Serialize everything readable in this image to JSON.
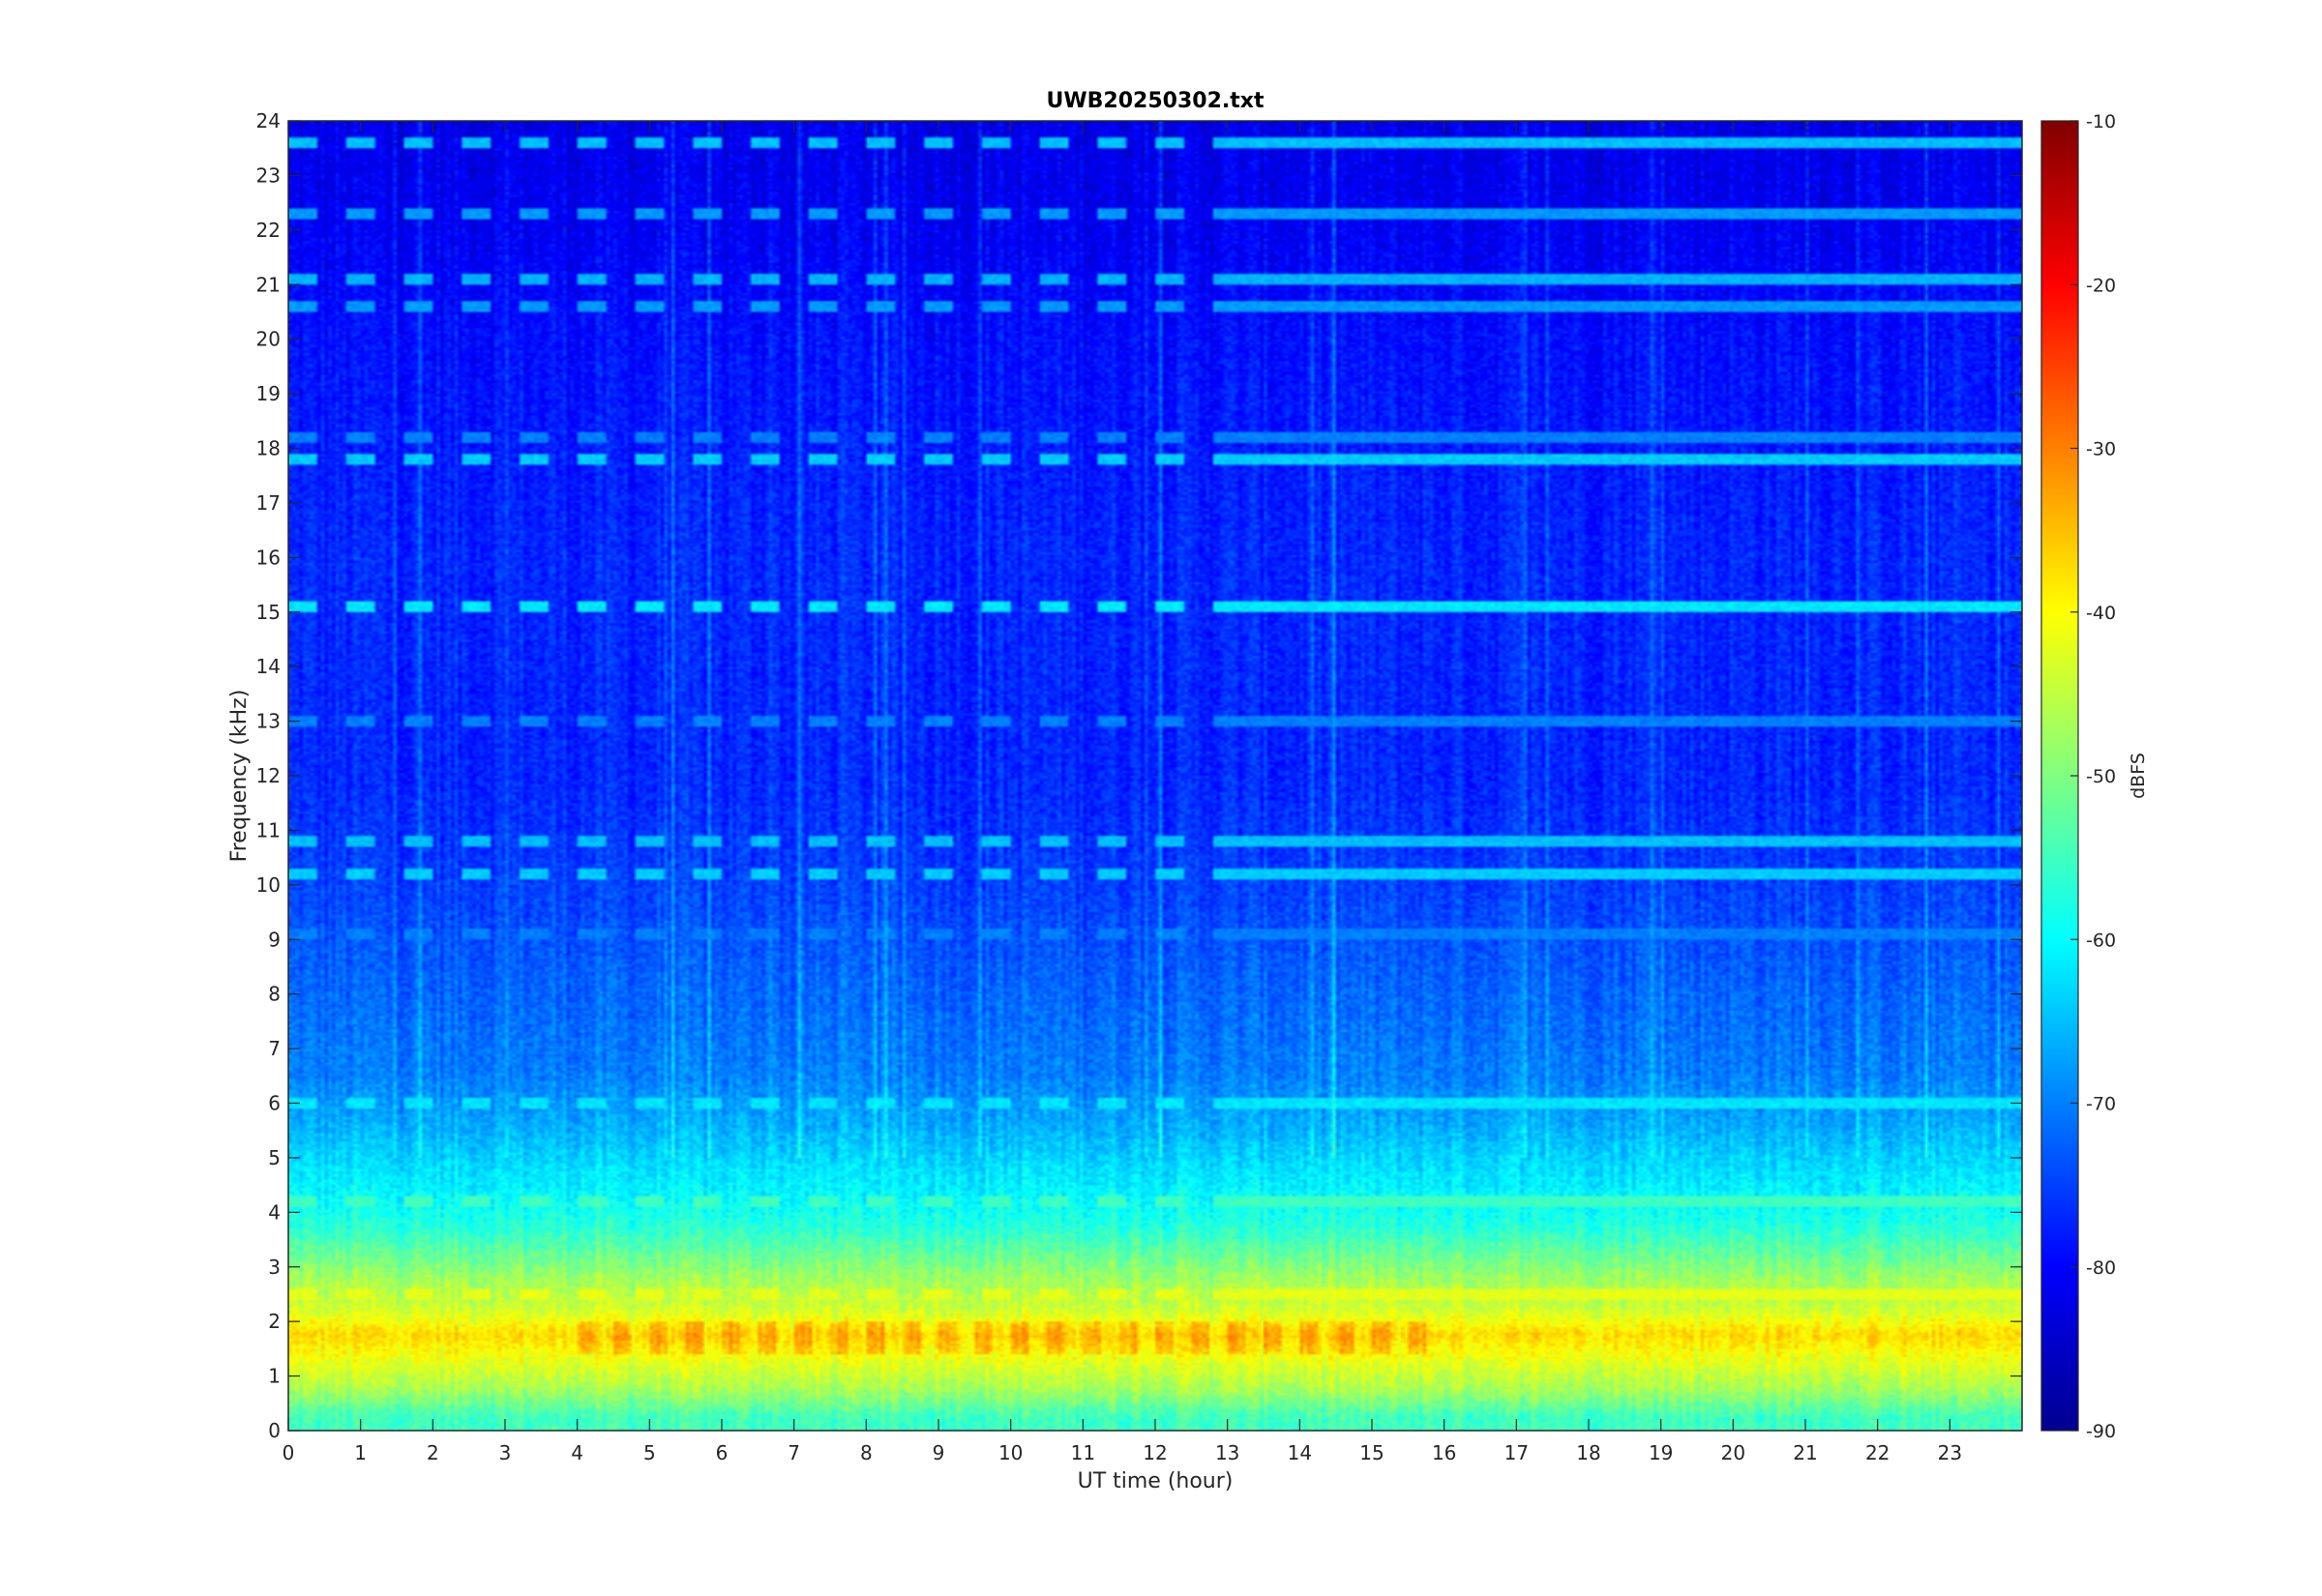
{
  "chart_data": {
    "type": "heatmap",
    "title": "UWB20250302.txt",
    "xlabel": "UT time (hour)",
    "ylabel": "Frequency (kHz)",
    "xlim": [
      0,
      24
    ],
    "ylim": [
      0,
      24
    ],
    "x_ticks": [
      "0",
      "1",
      "2",
      "3",
      "4",
      "5",
      "6",
      "7",
      "8",
      "9",
      "10",
      "11",
      "12",
      "13",
      "14",
      "15",
      "16",
      "17",
      "18",
      "19",
      "20",
      "21",
      "22",
      "23"
    ],
    "y_ticks": [
      "0",
      "1",
      "2",
      "3",
      "4",
      "5",
      "6",
      "7",
      "8",
      "9",
      "10",
      "11",
      "12",
      "13",
      "14",
      "15",
      "16",
      "17",
      "18",
      "19",
      "20",
      "21",
      "22",
      "23",
      "24"
    ],
    "colorbar": {
      "label": "dBFS",
      "range": [
        -90,
        -10
      ],
      "ticks": [
        "-10",
        "-20",
        "-30",
        "-40",
        "-50",
        "-60",
        "-70",
        "-80",
        "-90"
      ],
      "colormap": "jet"
    },
    "frequency_profile_dbfs": [
      {
        "f": 0.25,
        "level": -55
      },
      {
        "f": 0.75,
        "level": -47
      },
      {
        "f": 1.25,
        "level": -42
      },
      {
        "f": 1.75,
        "level": -37
      },
      {
        "f": 2.25,
        "level": -44
      },
      {
        "f": 2.75,
        "level": -47
      },
      {
        "f": 3.25,
        "level": -52
      },
      {
        "f": 3.75,
        "level": -57
      },
      {
        "f": 4.25,
        "level": -60
      },
      {
        "f": 4.75,
        "level": -62
      },
      {
        "f": 5.5,
        "level": -66
      },
      {
        "f": 6.5,
        "level": -70
      },
      {
        "f": 8,
        "level": -72
      },
      {
        "f": 10,
        "level": -75
      },
      {
        "f": 12,
        "level": -77
      },
      {
        "f": 14,
        "level": -77
      },
      {
        "f": 16,
        "level": -77
      },
      {
        "f": 18,
        "level": -78
      },
      {
        "f": 20,
        "level": -79
      },
      {
        "f": 22,
        "level": -81
      },
      {
        "f": 23.75,
        "level": -82
      }
    ],
    "narrowband_lines_khz": [
      {
        "f": 23.6,
        "level": -65
      },
      {
        "f": 22.3,
        "level": -68
      },
      {
        "f": 21.1,
        "level": -66
      },
      {
        "f": 20.6,
        "level": -68
      },
      {
        "f": 18.2,
        "level": -70
      },
      {
        "f": 17.8,
        "level": -64
      },
      {
        "f": 15.1,
        "level": -62
      },
      {
        "f": 13.0,
        "level": -70
      },
      {
        "f": 10.2,
        "level": -64
      },
      {
        "f": 10.8,
        "level": -65
      },
      {
        "f": 9.1,
        "level": -70
      },
      {
        "f": 6.0,
        "level": -62
      },
      {
        "f": 4.2,
        "level": -55
      },
      {
        "f": 2.5,
        "level": -42
      }
    ]
  }
}
